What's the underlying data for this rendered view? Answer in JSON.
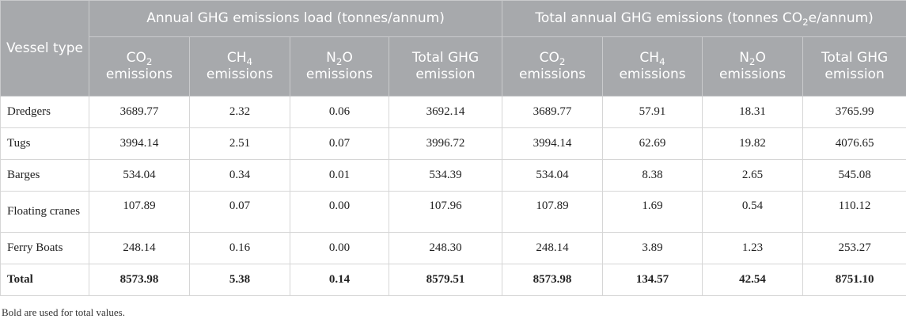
{
  "header": {
    "vessel_type": "Vessel type",
    "group1": "Annual GHG emissions load (tonnes/annum)",
    "group2_prefix": "Total annual GHG emissions (tonnes CO",
    "group2_sub": "2",
    "group2_suffix": "e/annum)",
    "columns": [
      {
        "main": "CO",
        "sub": "2",
        "line2": "emissions"
      },
      {
        "main": "CH",
        "sub": "4",
        "line2": "emissions"
      },
      {
        "main": "N",
        "sub": "2",
        "after": "O",
        "line2": "emissions"
      },
      {
        "main": "Total GHG",
        "sub": "",
        "line2": "emission"
      },
      {
        "main": "CO",
        "sub": "2",
        "line2": "emissions"
      },
      {
        "main": "CH",
        "sub": "4",
        "line2": "emissions"
      },
      {
        "main": "N",
        "sub": "2",
        "after": "O",
        "line2": "emissions"
      },
      {
        "main": "Total GHG",
        "sub": "",
        "line2": "emission"
      }
    ]
  },
  "rows": [
    {
      "vessel": "Dredgers",
      "values": [
        "3689.77",
        "2.32",
        "0.06",
        "3692.14",
        "3689.77",
        "57.91",
        "18.31",
        "3765.99"
      ]
    },
    {
      "vessel": "Tugs",
      "values": [
        "3994.14",
        "2.51",
        "0.07",
        "3996.72",
        "3994.14",
        "62.69",
        "19.82",
        "4076.65"
      ]
    },
    {
      "vessel": "Barges",
      "values": [
        "534.04",
        "0.34",
        "0.01",
        "534.39",
        "534.04",
        "8.38",
        "2.65",
        "545.08"
      ]
    },
    {
      "vessel": "Floating cranes",
      "values": [
        "107.89",
        "0.07",
        "0.00",
        "107.96",
        "107.89",
        "1.69",
        "0.54",
        "110.12"
      ]
    },
    {
      "vessel": "Ferry Boats",
      "values": [
        "248.14",
        "0.16",
        "0.00",
        "248.30",
        "248.14",
        "3.89",
        "1.23",
        "253.27"
      ]
    },
    {
      "vessel": "Total",
      "values": [
        "8573.98",
        "5.38",
        "0.14",
        "8579.51",
        "8573.98",
        "134.57",
        "42.54",
        "8751.10"
      ]
    }
  ],
  "footnote": "Bold are used for total values."
}
